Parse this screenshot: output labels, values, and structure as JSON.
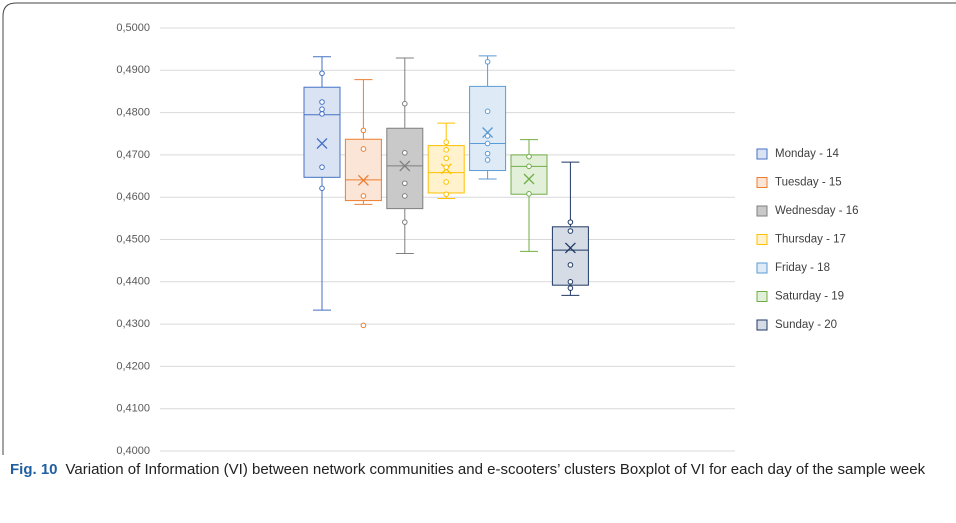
{
  "chart_data": {
    "type": "box",
    "caption_label": "Fig. 10",
    "caption": "Variation of Information (VI) between network communities and e-scooters’ clusters Boxplot of VI for each day of the sample week",
    "ylim": [
      0.4,
      0.5
    ],
    "yticks": [
      {
        "value": 0.4,
        "label": "0,4000"
      },
      {
        "value": 0.41,
        "label": "0,4100"
      },
      {
        "value": 0.42,
        "label": "0,4200"
      },
      {
        "value": 0.43,
        "label": "0,4300"
      },
      {
        "value": 0.44,
        "label": "0,4400"
      },
      {
        "value": 0.45,
        "label": "0,4500"
      },
      {
        "value": 0.46,
        "label": "0,4600"
      },
      {
        "value": 0.47,
        "label": "0,4700"
      },
      {
        "value": 0.48,
        "label": "0,4800"
      },
      {
        "value": 0.49,
        "label": "0,4900"
      },
      {
        "value": 0.5,
        "label": "0,5000"
      }
    ],
    "grid": true,
    "legend": "right",
    "series": [
      {
        "name": "Monday - 14",
        "color": "#4472c4",
        "fill": "#dae3f3",
        "min": 0.4333,
        "q1": 0.4647,
        "median": 0.4795,
        "q3": 0.486,
        "max": 0.4932,
        "mean": 0.4727,
        "points": [
          0.4893,
          0.4825,
          0.4808,
          0.4797,
          0.4671,
          0.4621
        ]
      },
      {
        "name": "Tuesday - 15",
        "color": "#ed7d31",
        "fill": "#fbe5d6",
        "min": 0.4583,
        "q1": 0.4592,
        "median": 0.4641,
        "q3": 0.4737,
        "max": 0.4878,
        "mean": 0.464,
        "points": [
          0.4758,
          0.4714,
          0.4603,
          0.4297
        ]
      },
      {
        "name": "Wednesday - 16",
        "color": "#7f7f7f",
        "fill": "#c9c9c9",
        "min": 0.4467,
        "q1": 0.4573,
        "median": 0.4674,
        "q3": 0.4763,
        "max": 0.4929,
        "mean": 0.4674,
        "points": [
          0.4821,
          0.4705,
          0.4633,
          0.4603,
          0.4541
        ]
      },
      {
        "name": "Thursday - 17",
        "color": "#ffc000",
        "fill": "#fff2cc",
        "min": 0.4597,
        "q1": 0.461,
        "median": 0.4658,
        "q3": 0.4722,
        "max": 0.4775,
        "mean": 0.4667,
        "points": [
          0.473,
          0.4712,
          0.4692,
          0.4671,
          0.4636,
          0.4607
        ]
      },
      {
        "name": "Friday - 18",
        "color": "#5b9bd5",
        "fill": "#deebf7",
        "min": 0.4643,
        "q1": 0.4663,
        "median": 0.4727,
        "q3": 0.4862,
        "max": 0.4934,
        "mean": 0.4753,
        "points": [
          0.492,
          0.4803,
          0.4745,
          0.4727,
          0.4703,
          0.4688
        ]
      },
      {
        "name": "Saturday - 19",
        "color": "#70ad47",
        "fill": "#e2f0d9",
        "min": 0.4472,
        "q1": 0.4607,
        "median": 0.4673,
        "q3": 0.47,
        "max": 0.4736,
        "mean": 0.4643,
        "points": [
          0.4696,
          0.4673,
          0.4608
        ]
      },
      {
        "name": "Sunday - 20",
        "color": "#1f3864",
        "fill": "#d6dce5",
        "min": 0.4368,
        "q1": 0.4392,
        "median": 0.4475,
        "q3": 0.453,
        "max": 0.4683,
        "mean": 0.448,
        "points": [
          0.4541,
          0.452,
          0.444,
          0.44,
          0.4385
        ]
      }
    ]
  }
}
